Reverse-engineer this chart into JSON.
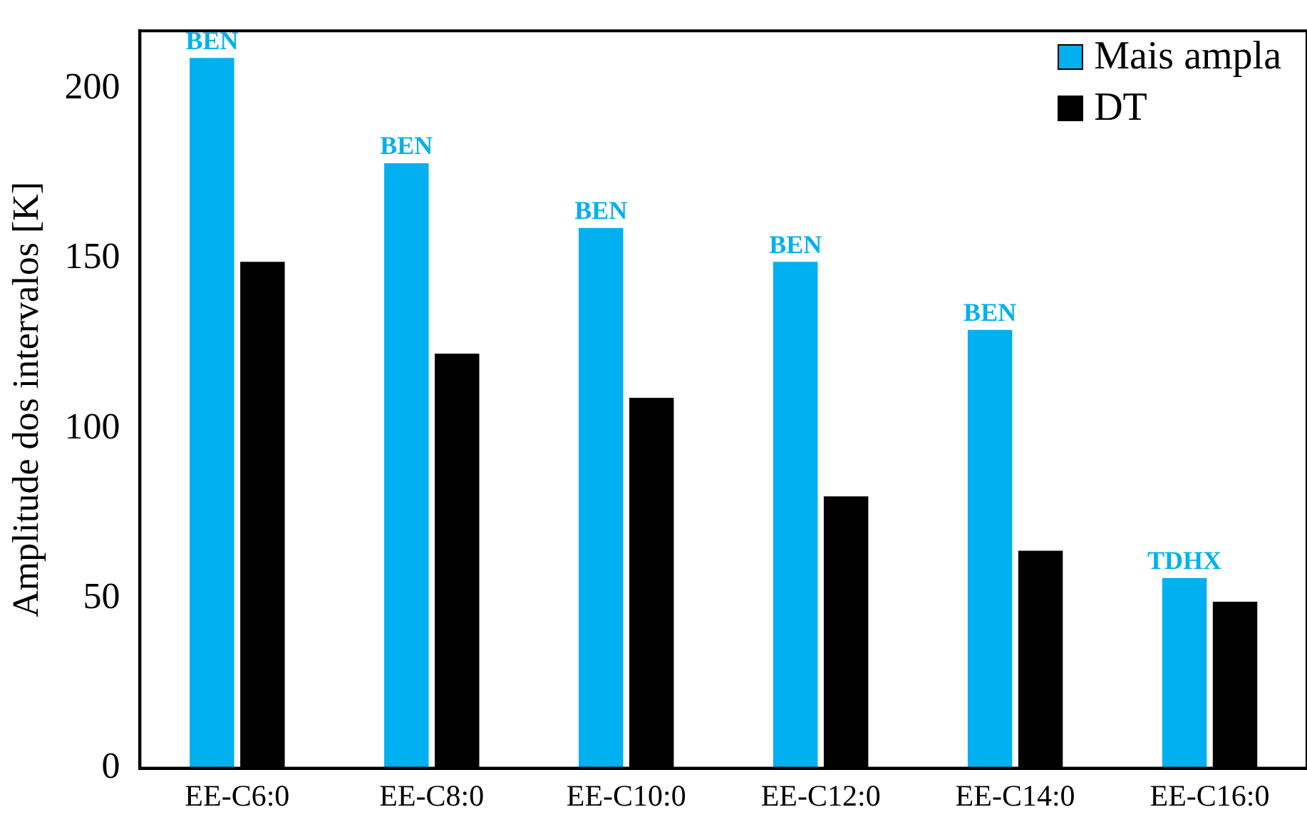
{
  "chart_data": {
    "type": "bar",
    "ylabel": "Amplitude dos intervalos [K]",
    "categories": [
      "EE-C6:0",
      "EE-C8:0",
      "EE-C10:0",
      "EE-C12:0",
      "EE-C14:0",
      "EE-C16:0"
    ],
    "series": [
      {
        "name": "Mais ampla",
        "color": "#00b0f0",
        "values": [
          209,
          178,
          159,
          149,
          129,
          56
        ]
      },
      {
        "name": "DT",
        "color": "#000000",
        "values": [
          149,
          122,
          109,
          80,
          64,
          49
        ]
      }
    ],
    "ylim": [
      0,
      217
    ],
    "yticks": [
      0,
      50,
      100,
      150,
      200
    ],
    "grid": false,
    "legend": "top right",
    "annotations": [
      {
        "text": "BEN",
        "x": "EE-C6:0",
        "y": 209
      },
      {
        "text": "BEN",
        "x": "EE-C8:0",
        "y": 178
      },
      {
        "text": "BEN",
        "x": "EE-C10:0",
        "y": 159
      },
      {
        "text": "BEN",
        "x": "EE-C12:0",
        "y": 149
      },
      {
        "text": "BEN",
        "x": "EE-C14:0",
        "y": 129
      },
      {
        "text": "TDHX",
        "x": "EE-C16:0",
        "y": 56
      }
    ]
  }
}
